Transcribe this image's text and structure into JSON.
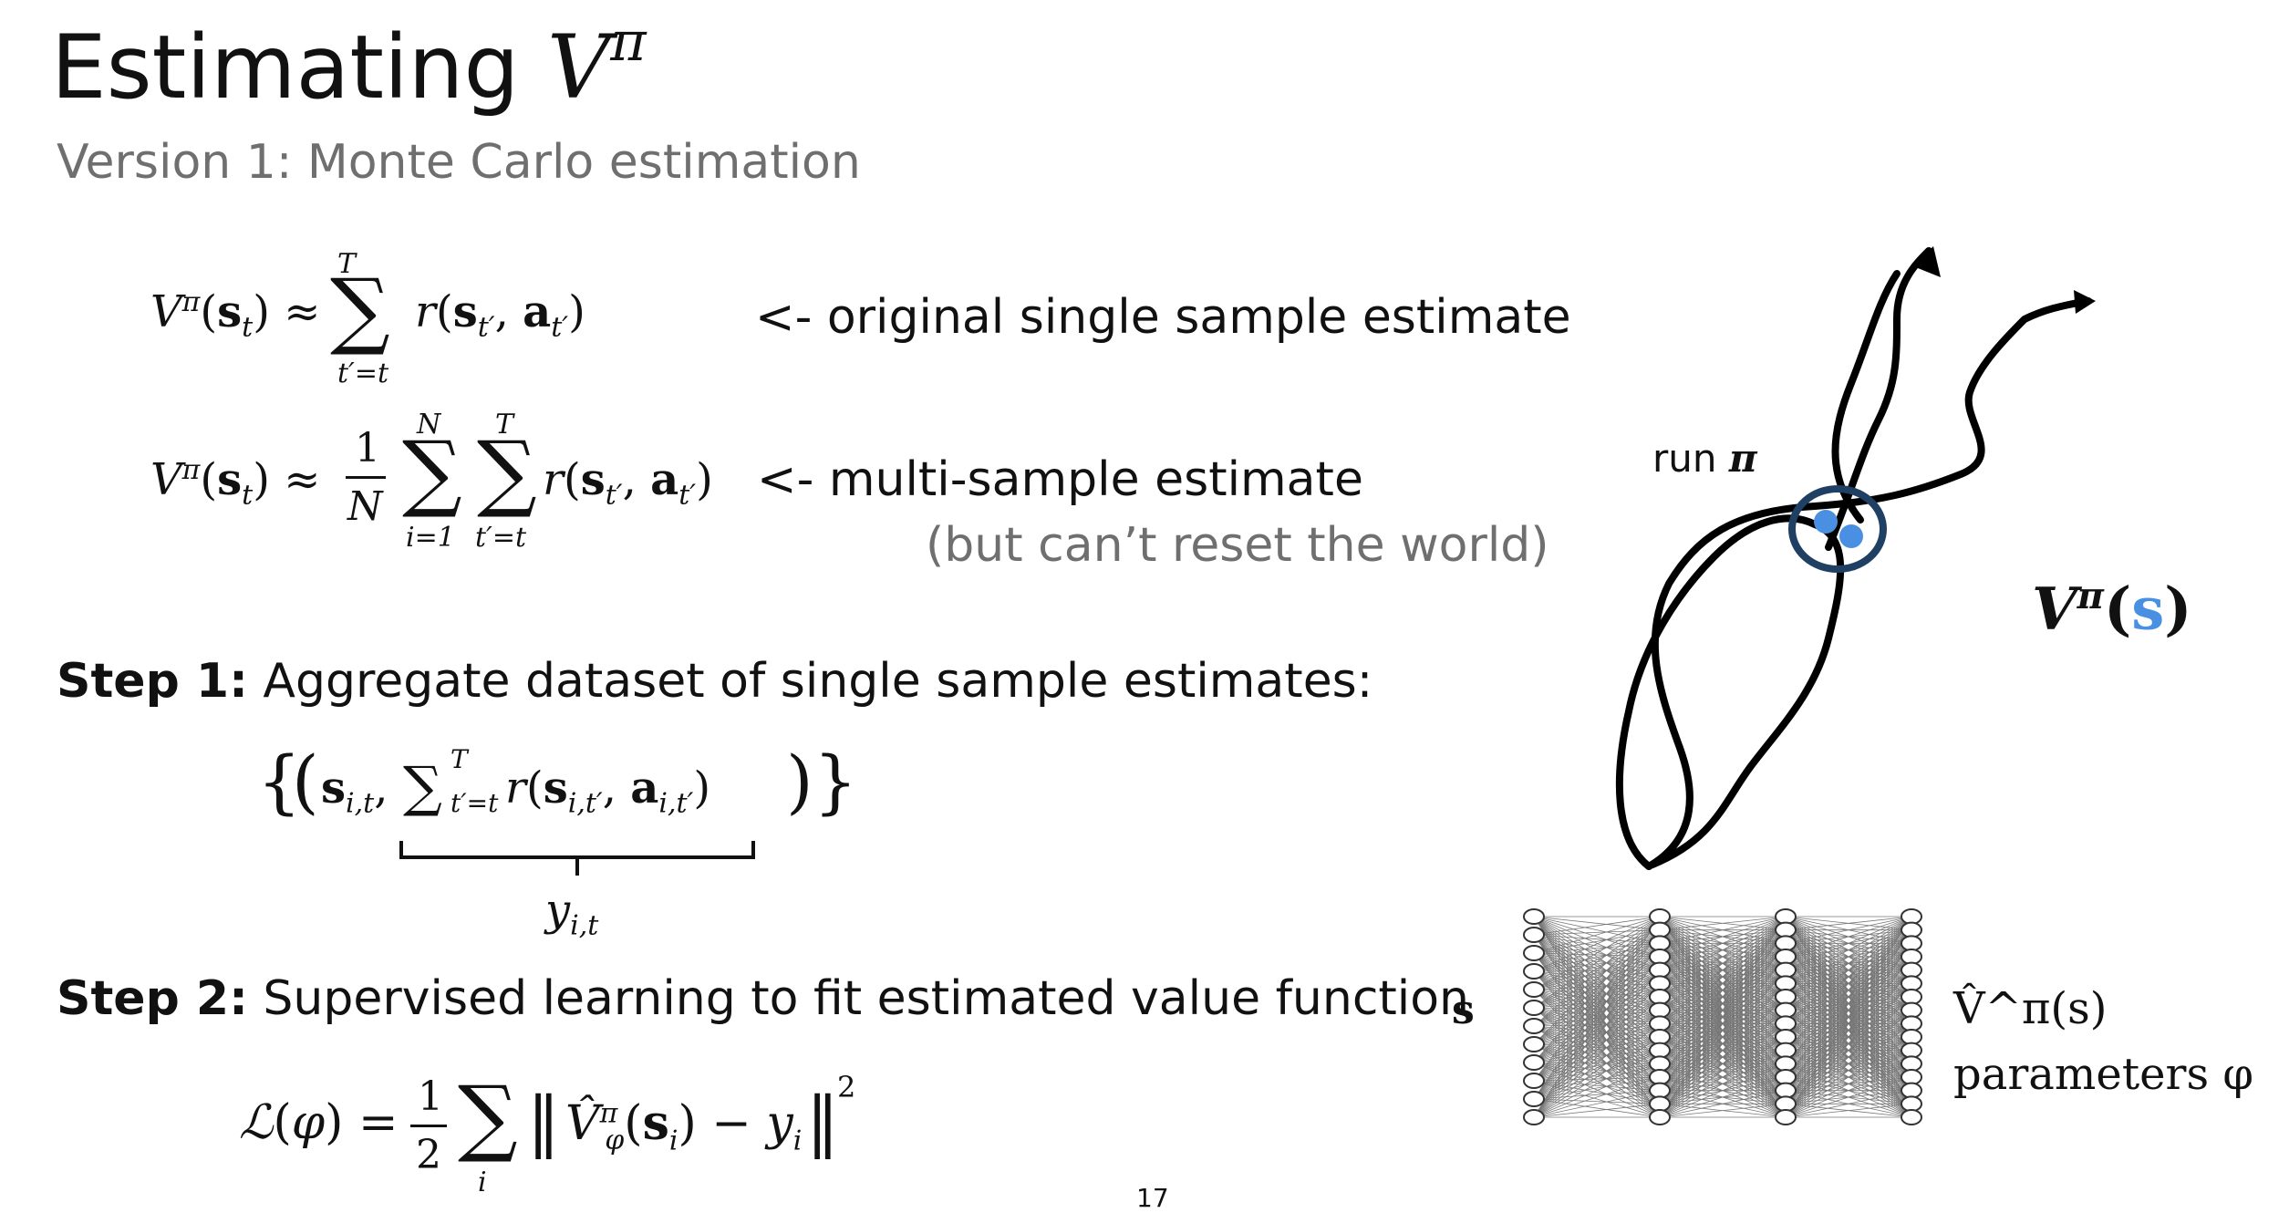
{
  "title": {
    "text": "Estimating ",
    "symbol": "V",
    "superscript": "π"
  },
  "subtitle": "Version 1: Monte Carlo estimation",
  "equations": {
    "single_sample": "V^π(s_t) ≈ Σ_{t'=t}^{T} r(s_{t'}, a_{t'})",
    "multi_sample": "V^π(s_t) ≈ (1/N) Σ_{i=1}^{N} Σ_{t'=t}^{T} r(s_{t'}, a_{t'})",
    "dataset": "{ ( s_{i,t}, Σ_{t'=t}^{T} r(s_{i,t'}, a_{i,t'}) ) }",
    "dataset_label": "y_{i,t}",
    "loss": "L(φ) = 1/2 Σ_i ‖ V̂_φ^π(s_i) − y_i ‖²"
  },
  "notes": {
    "single": "<- original single sample estimate",
    "multi": "<- multi-sample estimate",
    "caveat": "(but can’t reset the world)"
  },
  "steps": [
    {
      "label": "Step 1:",
      "text": " Aggregate dataset of single sample estimates:"
    },
    {
      "label": "Step 2:",
      "text": " Supervised learning to fit estimated value function"
    }
  ],
  "diagram": {
    "run_label": "run ",
    "run_symbol": "π",
    "value_label": {
      "V": "V",
      "sup": "π",
      "open": "(",
      "s": "s",
      "close": ")"
    },
    "net_input": "s",
    "net_output": "V̂^π(s)",
    "net_params": "parameters φ",
    "colors": {
      "accent": "#4a90e2",
      "circle": "#1f3f63",
      "ink": "#000000"
    }
  },
  "page_number": "17"
}
